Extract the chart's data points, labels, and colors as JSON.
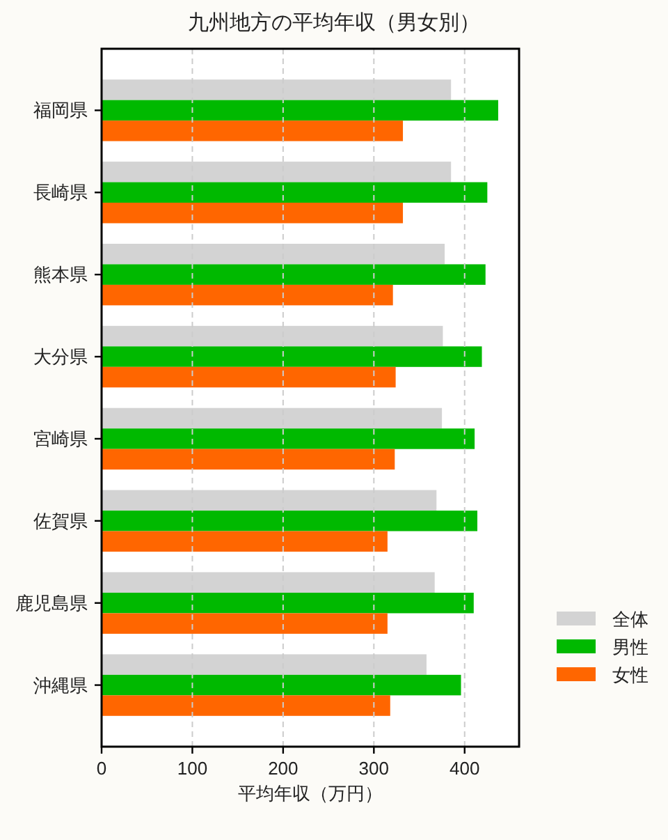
{
  "chart_data": {
    "type": "bar",
    "orientation": "horizontal",
    "title": "九州地方の平均年収（男女別）",
    "xlabel": "平均年収（万円）",
    "categories": [
      "福岡県",
      "長崎県",
      "熊本県",
      "大分県",
      "宮崎県",
      "佐賀県",
      "鹿児島県",
      "沖縄県"
    ],
    "series": [
      {
        "name": "全体",
        "color": "#d3d3d3",
        "values": [
          385,
          385,
          378,
          376,
          375,
          369,
          367,
          358
        ]
      },
      {
        "name": "男性",
        "color": "#00b900",
        "values": [
          437,
          425,
          423,
          419,
          411,
          414,
          410,
          396
        ]
      },
      {
        "name": "女性",
        "color": "#ff6600",
        "values": [
          332,
          332,
          321,
          324,
          323,
          315,
          315,
          318
        ]
      }
    ],
    "xlim": [
      0,
      460
    ],
    "xticks": [
      0,
      100,
      200,
      300,
      400
    ],
    "grid": "x",
    "legend": "bottom right"
  }
}
